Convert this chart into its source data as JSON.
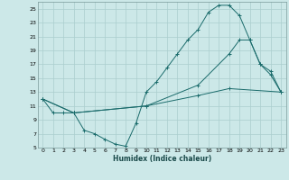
{
  "xlabel": "Humidex (Indice chaleur)",
  "bg_color": "#cce8e8",
  "grid_color": "#aacece",
  "line_color": "#1a6b6b",
  "xlim": [
    -0.5,
    23.5
  ],
  "ylim": [
    5,
    26
  ],
  "yticks": [
    5,
    7,
    9,
    11,
    13,
    15,
    17,
    19,
    21,
    23,
    25
  ],
  "xticks": [
    0,
    1,
    2,
    3,
    4,
    5,
    6,
    7,
    8,
    9,
    10,
    11,
    12,
    13,
    14,
    15,
    16,
    17,
    18,
    19,
    20,
    21,
    22,
    23
  ],
  "line1_x": [
    0,
    1,
    2,
    3,
    4,
    5,
    6,
    7,
    8,
    9,
    10,
    11,
    12,
    13,
    14,
    15,
    16,
    17,
    18,
    19,
    20,
    21,
    22,
    23
  ],
  "line1_y": [
    12,
    10,
    10,
    10,
    7.5,
    7,
    6.2,
    5.5,
    5.2,
    8.5,
    13,
    14.5,
    16.5,
    18.5,
    20.5,
    22,
    24.5,
    25.5,
    25.5,
    24,
    20.5,
    17,
    15.5,
    13
  ],
  "line2_x": [
    0,
    3,
    10,
    15,
    18,
    19,
    20,
    21,
    22,
    23
  ],
  "line2_y": [
    12,
    10,
    11,
    14,
    18.5,
    20.5,
    20.5,
    17,
    16,
    13
  ],
  "line3_x": [
    0,
    3,
    10,
    15,
    18,
    23
  ],
  "line3_y": [
    12,
    10,
    11,
    12.5,
    13.5,
    13
  ]
}
